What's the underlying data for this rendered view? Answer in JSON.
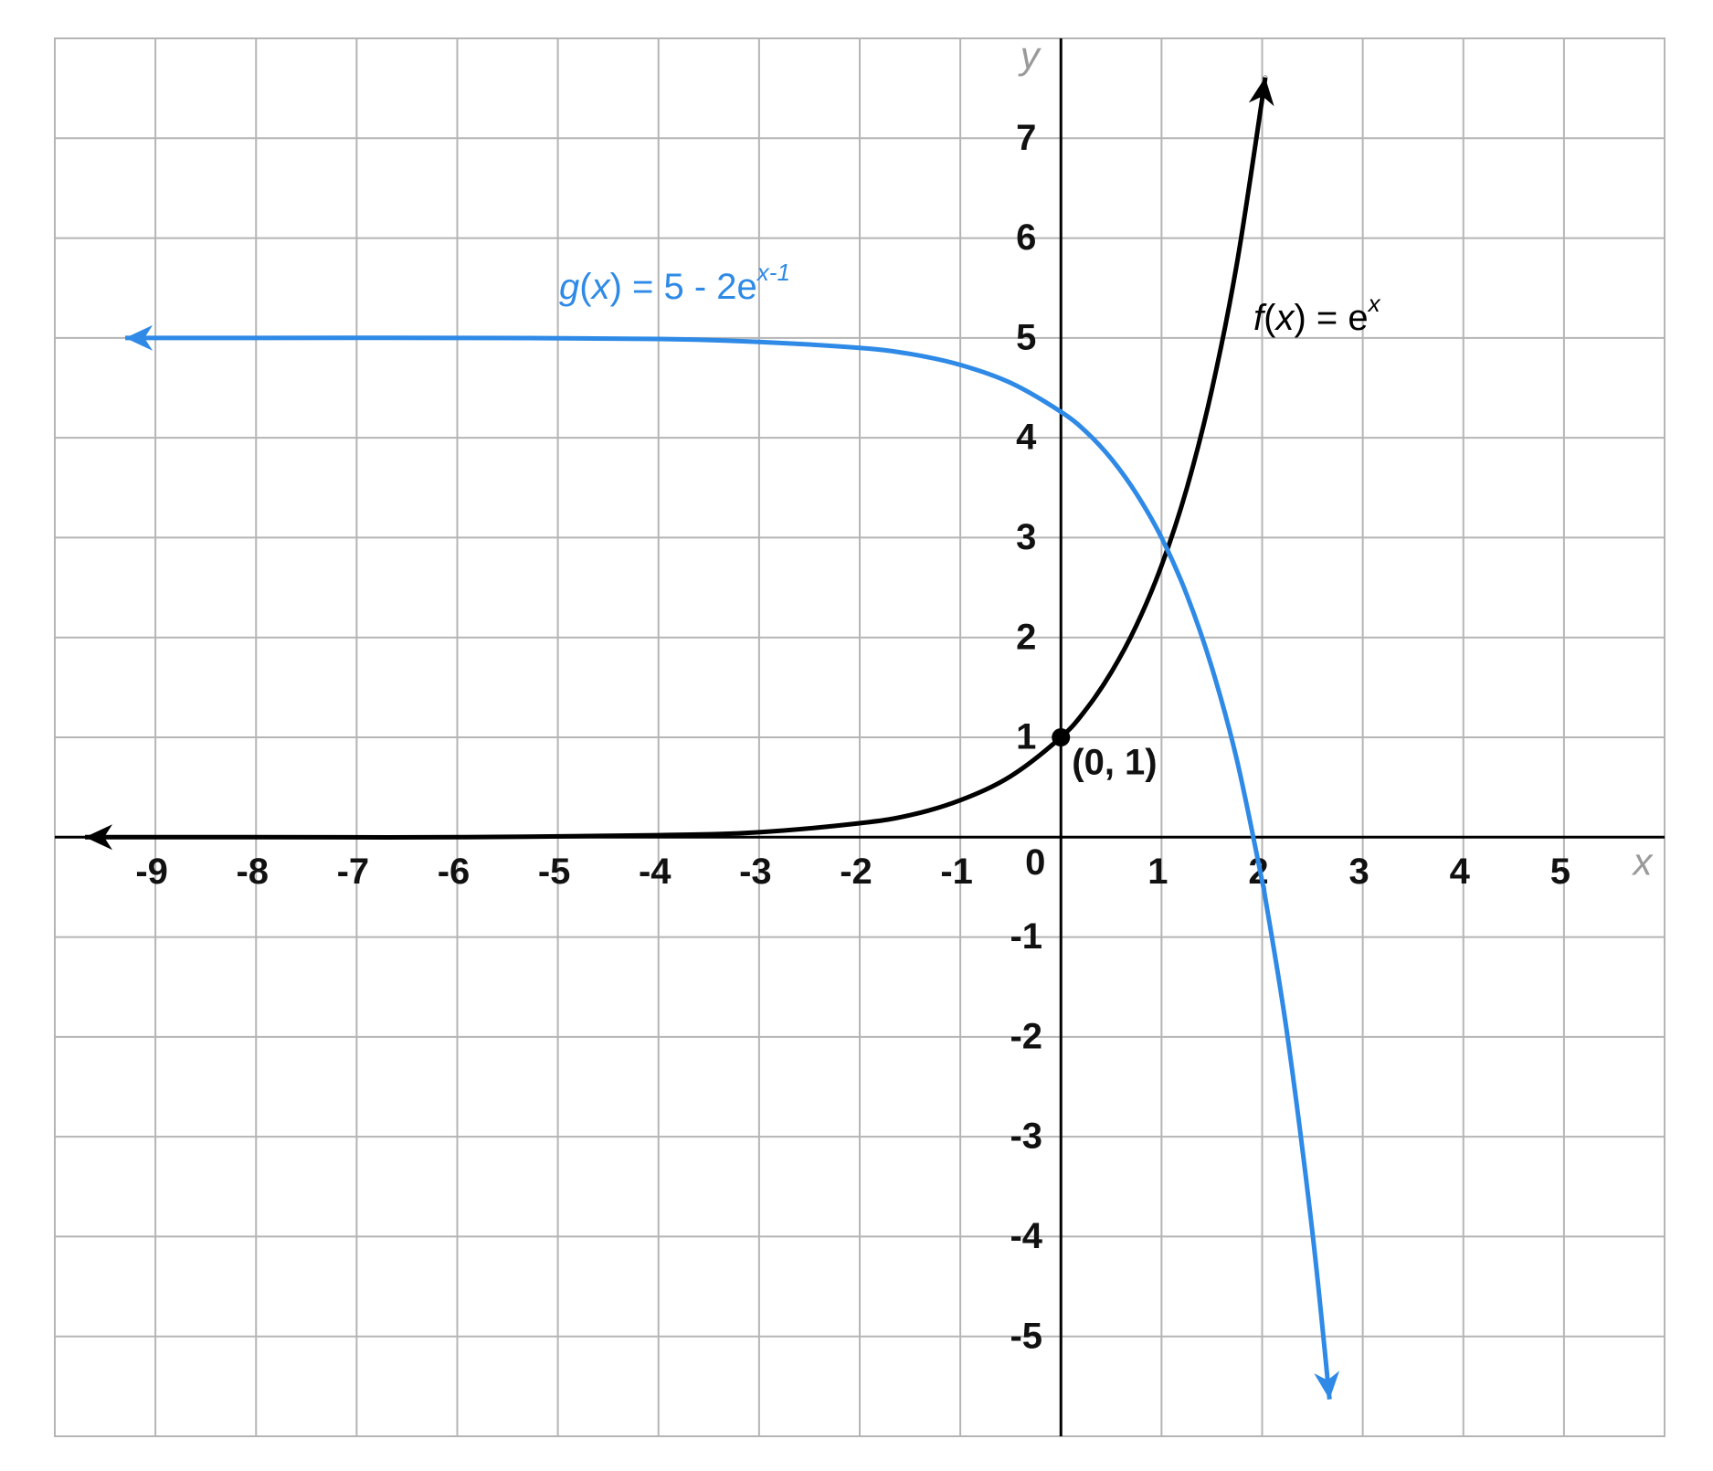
{
  "chart_data": {
    "type": "line",
    "xlabel": "x",
    "ylabel": "y",
    "xlim": [
      -10,
      6
    ],
    "ylim": [
      -6,
      8
    ],
    "xticks": [
      -9,
      -8,
      -7,
      -6,
      -5,
      -4,
      -3,
      -2,
      -1,
      0,
      1,
      2,
      3,
      4,
      5
    ],
    "yticks": [
      -5,
      -4,
      -3,
      -2,
      -1,
      1,
      2,
      3,
      4,
      5,
      6,
      7
    ],
    "grid": true,
    "x": [
      -9.7,
      -9.3,
      -8,
      -6,
      -4,
      -3,
      -2,
      -1.5,
      -1,
      -0.5,
      0,
      0.25,
      0.5,
      0.75,
      1,
      1.25,
      1.5,
      1.75,
      2,
      2.03,
      2.25,
      2.5,
      2.67
    ],
    "series": [
      {
        "label_parts": [
          {
            "text": "f",
            "style": "italic"
          },
          {
            "text": "(",
            "style": "normal"
          },
          {
            "text": "x",
            "style": "italic"
          },
          {
            "text": ") = e",
            "style": "normal"
          },
          {
            "text": "x",
            "style": "sup"
          }
        ],
        "color": "#000000",
        "values": [
          0,
          0,
          0,
          0,
          0.02,
          0.05,
          0.14,
          0.22,
          0.37,
          0.61,
          1,
          1.28,
          1.65,
          2.12,
          2.72,
          3.49,
          4.48,
          5.75,
          7.39,
          7.61,
          null,
          null,
          null
        ]
      },
      {
        "label_parts": [
          {
            "text": "g",
            "style": "italic"
          },
          {
            "text": "(",
            "style": "normal"
          },
          {
            "text": "x",
            "style": "italic"
          },
          {
            "text": ") = 5 - 2e",
            "style": "normal"
          },
          {
            "text": "x-1",
            "style": "sup"
          }
        ],
        "color": "#2e8ae6",
        "values": [
          null,
          5,
          5,
          5,
          4.99,
          4.96,
          4.9,
          4.84,
          4.73,
          4.55,
          4.26,
          4.06,
          3.79,
          3.44,
          3,
          2.43,
          1.7,
          0.77,
          -0.44,
          -0.6,
          -1.98,
          -3.96,
          -5.63
        ]
      }
    ],
    "points": [
      {
        "x": 0,
        "y": 1,
        "label": "(0, 1)",
        "color": "#000000"
      }
    ]
  }
}
